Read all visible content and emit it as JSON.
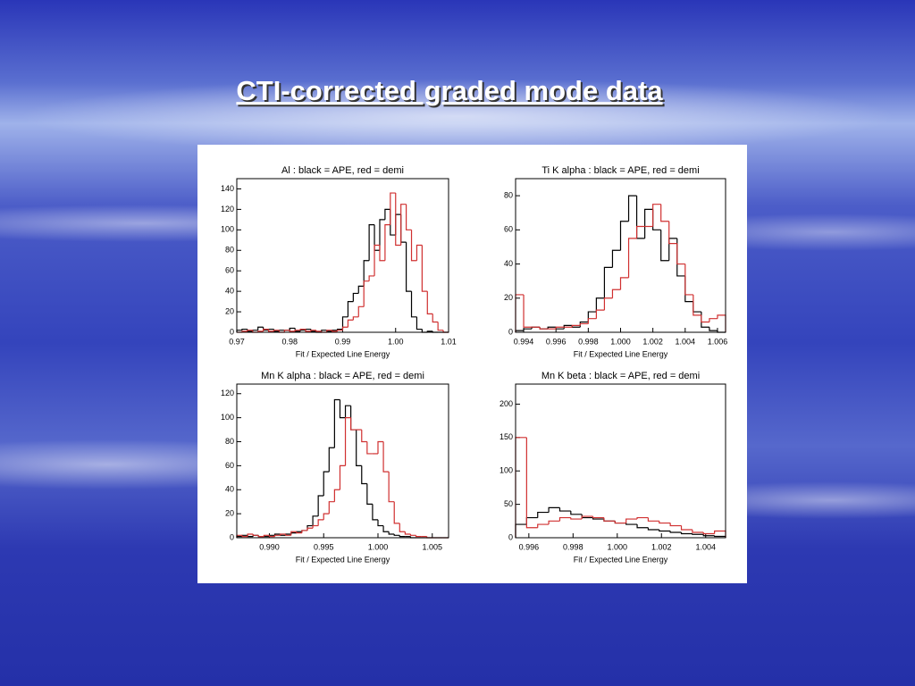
{
  "title": "CTI-corrected graded mode data",
  "chart_data": [
    {
      "type": "histogram",
      "title": "Al : black = APE, red = demi",
      "x_label": "Fit / Expected Line Energy",
      "xlim": [
        0.97,
        1.01
      ],
      "xticks": [
        0.97,
        0.98,
        0.99,
        {
          "value": 1,
          "label": "1.00"
        },
        1.01
      ],
      "ylim": [
        0,
        150
      ],
      "yticks": [
        0,
        20,
        40,
        60,
        80,
        100,
        120,
        140
      ],
      "bins": [
        0.97,
        0.971,
        0.972,
        0.973,
        0.974,
        0.975,
        0.976,
        0.977,
        0.978,
        0.979,
        0.98,
        0.981,
        0.982,
        0.983,
        0.984,
        0.985,
        0.986,
        0.987,
        0.988,
        0.989,
        0.99,
        0.991,
        0.992,
        0.993,
        0.994,
        0.995,
        0.996,
        0.997,
        0.998,
        0.999,
        1.0,
        1.001,
        1.002,
        1.003,
        1.004,
        1.005,
        1.006,
        1.007,
        1.008,
        1.009,
        1.01
      ],
      "series": [
        {
          "color": "#000000",
          "values": [
            2,
            3,
            1,
            2,
            5,
            2,
            3,
            1,
            2,
            2,
            4,
            1,
            2,
            3,
            1,
            0,
            2,
            1,
            2,
            3,
            15,
            30,
            38,
            45,
            70,
            105,
            80,
            110,
            120,
            95,
            115,
            88,
            40,
            15,
            3,
            0,
            1,
            0,
            0,
            0
          ]
        },
        {
          "color": "#d03030",
          "values": [
            0,
            1,
            2,
            0,
            1,
            3,
            1,
            2,
            0,
            2,
            1,
            2,
            3,
            1,
            2,
            1,
            0,
            2,
            1,
            2,
            5,
            12,
            15,
            25,
            50,
            55,
            85,
            70,
            105,
            136,
            85,
            125,
            100,
            70,
            85,
            40,
            18,
            10,
            2,
            0
          ]
        }
      ]
    },
    {
      "type": "histogram",
      "title": "Ti K alpha : black = APE, red = demi",
      "x_label": "Fit / Expected Line Energy",
      "xlim": [
        0.9935,
        1.0065
      ],
      "xticks": [
        0.994,
        0.996,
        0.998,
        {
          "value": 1,
          "label": "1.000"
        },
        1.002,
        1.004,
        1.006
      ],
      "ylim": [
        0,
        90
      ],
      "yticks": [
        0,
        20,
        40,
        60,
        80
      ],
      "bins": [
        0.9935,
        0.994,
        0.9945,
        0.995,
        0.9955,
        0.996,
        0.9965,
        0.997,
        0.9975,
        0.998,
        0.9985,
        0.999,
        0.9995,
        1.0,
        1.0005,
        1.001,
        1.0015,
        1.002,
        1.0025,
        1.003,
        1.0035,
        1.004,
        1.0045,
        1.005,
        1.0055,
        1.006,
        1.0065
      ],
      "series": [
        {
          "color": "#000000",
          "values": [
            1,
            2,
            3,
            2,
            3,
            2,
            4,
            3,
            6,
            12,
            20,
            38,
            48,
            65,
            80,
            55,
            72,
            60,
            42,
            55,
            33,
            18,
            12,
            3,
            1,
            0
          ]
        },
        {
          "color": "#d03030",
          "values": [
            22,
            3,
            3,
            2,
            2,
            3,
            3,
            4,
            5,
            8,
            13,
            20,
            25,
            32,
            55,
            62,
            62,
            75,
            65,
            52,
            40,
            22,
            10,
            6,
            8,
            10
          ]
        }
      ]
    },
    {
      "type": "histogram",
      "title": "Mn K alpha : black = APE, red = demi",
      "x_label": "Fit / Expected Line Energy",
      "xlim": [
        0.987,
        1.0065
      ],
      "xticks": [
        {
          "value": 0.99,
          "label": "0.990"
        },
        0.995,
        {
          "value": 1,
          "label": "1.000"
        },
        1.005
      ],
      "ylim": [
        0,
        128
      ],
      "yticks": [
        0,
        20,
        40,
        60,
        80,
        100,
        120
      ],
      "bins": [
        0.987,
        0.9875,
        0.988,
        0.9885,
        0.989,
        0.9895,
        0.99,
        0.9905,
        0.991,
        0.9915,
        0.992,
        0.9925,
        0.993,
        0.9935,
        0.994,
        0.9945,
        0.995,
        0.9955,
        0.996,
        0.9965,
        0.997,
        0.9975,
        0.998,
        0.9985,
        0.999,
        0.9995,
        1.0,
        1.0005,
        1.001,
        1.0015,
        1.002,
        1.0025,
        1.003,
        1.0035,
        1.004,
        1.0045,
        1.005,
        1.0055,
        1.006,
        1.0065
      ],
      "series": [
        {
          "color": "#000000",
          "values": [
            1,
            2,
            1,
            2,
            1,
            1,
            2,
            3,
            2,
            3,
            4,
            5,
            6,
            10,
            18,
            35,
            55,
            75,
            115,
            100,
            110,
            90,
            60,
            45,
            28,
            15,
            10,
            5,
            3,
            2,
            1,
            1,
            0,
            0,
            0,
            0,
            0,
            0,
            0
          ]
        },
        {
          "color": "#d03030",
          "values": [
            2,
            1,
            3,
            2,
            1,
            2,
            1,
            2,
            3,
            2,
            5,
            4,
            6,
            8,
            10,
            15,
            20,
            30,
            40,
            60,
            100,
            90,
            90,
            80,
            70,
            70,
            80,
            55,
            30,
            12,
            5,
            3,
            2,
            1,
            1,
            0,
            0,
            0,
            0
          ]
        }
      ]
    },
    {
      "type": "histogram",
      "title": "Mn K beta : black = APE, red = demi",
      "x_label": "Fit / Expected Line Energy",
      "xlim": [
        0.9954,
        1.0049
      ],
      "xticks": [
        0.996,
        0.998,
        {
          "value": 1,
          "label": "1.000"
        },
        1.002,
        1.004
      ],
      "ylim": [
        0,
        230
      ],
      "yticks": [
        0,
        50,
        100,
        150,
        200
      ],
      "bins": [
        0.9954,
        0.9959,
        0.9964,
        0.9969,
        0.9974,
        0.9979,
        0.9984,
        0.9989,
        0.9994,
        0.9999,
        1.0004,
        1.0009,
        1.0014,
        1.0019,
        1.0024,
        1.0029,
        1.0034,
        1.0039,
        1.0044,
        1.0049
      ],
      "series": [
        {
          "color": "#000000",
          "values": [
            20,
            30,
            38,
            45,
            40,
            35,
            30,
            28,
            25,
            22,
            20,
            15,
            12,
            10,
            8,
            6,
            5,
            3,
            2
          ]
        },
        {
          "color": "#d03030",
          "values": [
            150,
            15,
            20,
            25,
            30,
            28,
            32,
            30,
            25,
            22,
            28,
            30,
            25,
            22,
            18,
            12,
            8,
            6,
            10
          ]
        }
      ]
    }
  ]
}
